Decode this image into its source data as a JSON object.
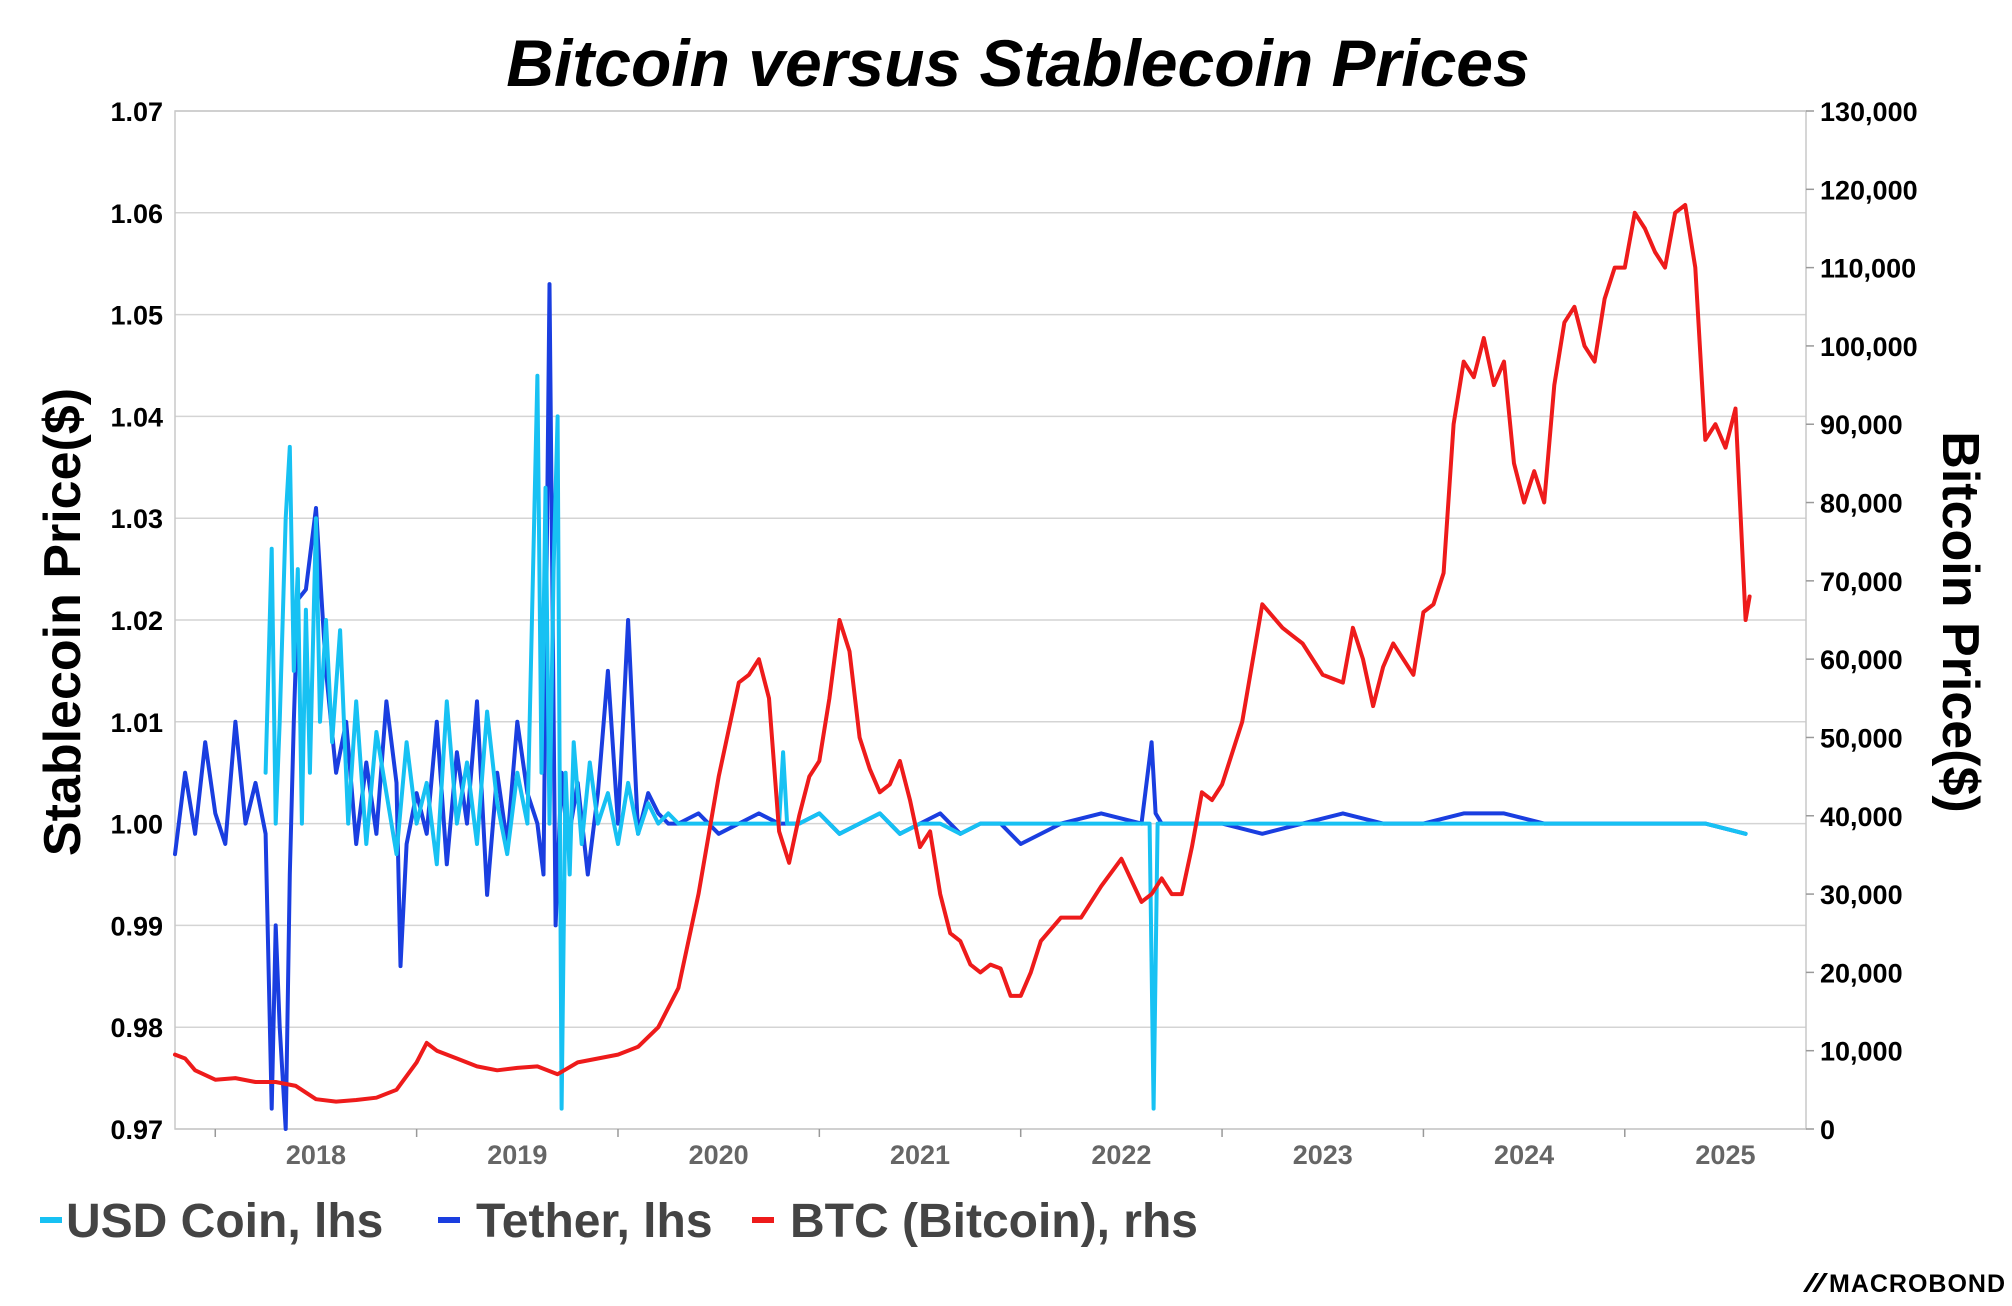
{
  "chart_data": {
    "type": "line",
    "title": "Bitcoin versus Stablecoin Prices",
    "ylabel_left": "Stablecoin Price($)",
    "ylabel_right": "Bitcoin Price($)",
    "ylim_left": [
      0.97,
      1.07
    ],
    "ylim_right": [
      0,
      130000
    ],
    "yticks_left": [
      "1.07",
      "1.06",
      "1.05",
      "1.04",
      "1.03",
      "1.02",
      "1.01",
      "1.00",
      "0.99",
      "0.98",
      "0.97"
    ],
    "yticks_right": [
      "130,000",
      "120,000",
      "110,000",
      "100,000",
      "90,000",
      "80,000",
      "70,000",
      "60,000",
      "50,000",
      "40,000",
      "30,000",
      "20,000",
      "10,000",
      "0"
    ],
    "xlim": [
      2017.8,
      2025.9
    ],
    "xticks": [
      "2018",
      "2019",
      "2020",
      "2021",
      "2022",
      "2023",
      "2024",
      "2025"
    ],
    "grid": true,
    "legend_position": "bottom-left",
    "series": [
      {
        "name": "USD Coin, lhs",
        "axis": "left",
        "color": "#17c1f3",
        "x": [
          2018.25,
          2018.28,
          2018.3,
          2018.32,
          2018.35,
          2018.37,
          2018.39,
          2018.41,
          2018.43,
          2018.45,
          2018.47,
          2018.5,
          2018.52,
          2018.55,
          2018.58,
          2018.62,
          2018.66,
          2018.7,
          2018.75,
          2018.8,
          2018.85,
          2018.9,
          2018.95,
          2019.0,
          2019.05,
          2019.1,
          2019.15,
          2019.2,
          2019.25,
          2019.3,
          2019.35,
          2019.4,
          2019.45,
          2019.5,
          2019.55,
          2019.6,
          2019.62,
          2019.64,
          2019.66,
          2019.68,
          2019.7,
          2019.72,
          2019.74,
          2019.76,
          2019.78,
          2019.82,
          2019.86,
          2019.9,
          2019.95,
          2020.0,
          2020.05,
          2020.1,
          2020.15,
          2020.2,
          2020.25,
          2020.3,
          2020.4,
          2020.5,
          2020.6,
          2020.7,
          2020.8,
          2020.82,
          2020.84,
          2020.9,
          2021.0,
          2021.1,
          2021.2,
          2021.3,
          2021.4,
          2021.5,
          2021.6,
          2021.7,
          2021.8,
          2021.9,
          2022.0,
          2022.2,
          2022.4,
          2022.6,
          2022.64,
          2022.66,
          2022.68,
          2022.7,
          2022.8,
          2023.0,
          2023.2,
          2023.4,
          2023.6,
          2023.8,
          2024.0,
          2024.2,
          2024.4,
          2024.6,
          2024.8,
          2025.0,
          2025.2,
          2025.4,
          2025.6
        ],
        "values": [
          1.005,
          1.027,
          1.0,
          1.01,
          1.03,
          1.037,
          1.015,
          1.025,
          1.0,
          1.021,
          1.005,
          1.03,
          1.01,
          1.02,
          1.008,
          1.019,
          1.0,
          1.012,
          0.998,
          1.009,
          1.003,
          0.997,
          1.008,
          1.0,
          1.004,
          0.996,
          1.012,
          1.0,
          1.006,
          0.998,
          1.011,
          1.002,
          0.997,
          1.005,
          1.0,
          1.044,
          1.005,
          1.033,
          1.0,
          1.025,
          1.04,
          0.972,
          1.005,
          0.995,
          1.008,
          0.998,
          1.006,
          1.0,
          1.003,
          0.998,
          1.004,
          0.999,
          1.002,
          1.0,
          1.001,
          1.0,
          1.0,
          1.0,
          1.0,
          1.0,
          1.0,
          1.007,
          1.0,
          1.0,
          1.001,
          0.999,
          1.0,
          1.001,
          0.999,
          1.0,
          1.0,
          0.999,
          1.0,
          1.0,
          1.0,
          1.0,
          1.0,
          1.0,
          1.0,
          0.972,
          1.0,
          1.0,
          1.0,
          1.0,
          1.0,
          1.0,
          1.0,
          1.0,
          1.0,
          1.0,
          1.0,
          1.0,
          1.0,
          1.0,
          1.0,
          1.0,
          0.999
        ]
      },
      {
        "name": "Tether, lhs",
        "axis": "left",
        "color": "#1a3ee0",
        "x": [
          2017.8,
          2017.85,
          2017.9,
          2017.95,
          2018.0,
          2018.05,
          2018.1,
          2018.15,
          2018.2,
          2018.25,
          2018.28,
          2018.3,
          2018.32,
          2018.35,
          2018.37,
          2018.39,
          2018.41,
          2018.45,
          2018.5,
          2018.55,
          2018.6,
          2018.65,
          2018.7,
          2018.75,
          2018.8,
          2018.85,
          2018.9,
          2018.92,
          2018.95,
          2019.0,
          2019.05,
          2019.1,
          2019.15,
          2019.2,
          2019.25,
          2019.3,
          2019.35,
          2019.4,
          2019.45,
          2019.5,
          2019.55,
          2019.6,
          2019.63,
          2019.66,
          2019.69,
          2019.72,
          2019.75,
          2019.8,
          2019.85,
          2019.9,
          2019.95,
          2020.0,
          2020.05,
          2020.1,
          2020.15,
          2020.2,
          2020.25,
          2020.3,
          2020.4,
          2020.5,
          2020.6,
          2020.7,
          2020.8,
          2020.9,
          2021.0,
          2021.1,
          2021.2,
          2021.3,
          2021.4,
          2021.5,
          2021.6,
          2021.7,
          2021.8,
          2021.9,
          2022.0,
          2022.2,
          2022.4,
          2022.6,
          2022.65,
          2022.67,
          2022.7,
          2022.8,
          2023.0,
          2023.2,
          2023.4,
          2023.6,
          2023.8,
          2024.0,
          2024.2,
          2024.4,
          2024.6,
          2024.8,
          2025.0,
          2025.2,
          2025.4,
          2025.6
        ],
        "values": [
          0.997,
          1.005,
          0.999,
          1.008,
          1.001,
          0.998,
          1.01,
          1.0,
          1.004,
          0.999,
          0.972,
          0.99,
          0.98,
          0.97,
          0.995,
          1.01,
          1.022,
          1.023,
          1.031,
          1.015,
          1.005,
          1.01,
          0.998,
          1.006,
          0.999,
          1.012,
          1.004,
          0.986,
          0.998,
          1.003,
          0.999,
          1.01,
          0.996,
          1.007,
          1.0,
          1.012,
          0.993,
          1.005,
          0.998,
          1.01,
          1.003,
          1.0,
          0.995,
          1.053,
          0.99,
          1.005,
          0.998,
          1.004,
          0.995,
          1.003,
          1.015,
          1.0,
          1.02,
          0.999,
          1.003,
          1.001,
          1.0,
          1.0,
          1.001,
          0.999,
          1.0,
          1.001,
          1.0,
          1.0,
          1.001,
          0.999,
          1.0,
          1.001,
          0.999,
          1.0,
          1.001,
          0.999,
          1.0,
          1.0,
          0.998,
          1.0,
          1.001,
          1.0,
          1.008,
          1.001,
          1.0,
          1.0,
          1.0,
          0.999,
          1.0,
          1.001,
          1.0,
          1.0,
          1.001,
          1.001,
          1.0,
          1.0,
          1.0,
          1.0,
          1.0,
          0.999
        ]
      },
      {
        "name": "BTC (Bitcoin), rhs",
        "axis": "right",
        "color": "#ee1b1b",
        "x": [
          2017.8,
          2017.85,
          2017.9,
          2018.0,
          2018.1,
          2018.2,
          2018.3,
          2018.4,
          2018.5,
          2018.6,
          2018.7,
          2018.8,
          2018.9,
          2019.0,
          2019.05,
          2019.1,
          2019.2,
          2019.3,
          2019.4,
          2019.5,
          2019.6,
          2019.7,
          2019.8,
          2019.9,
          2020.0,
          2020.1,
          2020.2,
          2020.3,
          2020.4,
          2020.5,
          2020.6,
          2020.65,
          2020.7,
          2020.75,
          2020.8,
          2020.85,
          2020.9,
          2020.95,
          2021.0,
          2021.05,
          2021.1,
          2021.15,
          2021.2,
          2021.25,
          2021.3,
          2021.35,
          2021.4,
          2021.45,
          2021.5,
          2021.55,
          2021.6,
          2021.65,
          2021.7,
          2021.75,
          2021.8,
          2021.85,
          2021.9,
          2021.95,
          2022.0,
          2022.05,
          2022.1,
          2022.15,
          2022.2,
          2022.3,
          2022.4,
          2022.5,
          2022.6,
          2022.65,
          2022.7,
          2022.75,
          2022.8,
          2022.85,
          2022.9,
          2022.95,
          2023.0,
          2023.1,
          2023.2,
          2023.3,
          2023.35,
          2023.4,
          2023.5,
          2023.6,
          2023.65,
          2023.7,
          2023.75,
          2023.8,
          2023.85,
          2023.9,
          2023.95,
          2024.0,
          2024.05,
          2024.1,
          2024.15,
          2024.2,
          2024.25,
          2024.3,
          2024.35,
          2024.4,
          2024.45,
          2024.5,
          2024.55,
          2024.6,
          2024.65,
          2024.7,
          2024.75,
          2024.8,
          2024.85,
          2024.9,
          2024.95,
          2025.0,
          2025.05,
          2025.1,
          2025.15,
          2025.2,
          2025.25,
          2025.3,
          2025.35,
          2025.4,
          2025.45,
          2025.5,
          2025.55,
          2025.6,
          2025.62
        ],
        "values": [
          9500,
          9000,
          7500,
          6300,
          6500,
          6000,
          6000,
          5500,
          3800,
          3500,
          3700,
          4000,
          5000,
          8500,
          11000,
          10000,
          9000,
          8000,
          7500,
          7800,
          8000,
          7000,
          8500,
          9000,
          9500,
          10500,
          13000,
          18000,
          30000,
          45000,
          57000,
          58000,
          60000,
          55000,
          38000,
          34000,
          40000,
          45000,
          47000,
          55000,
          65000,
          61000,
          50000,
          46000,
          43000,
          44000,
          47000,
          42000,
          36000,
          38000,
          30000,
          25000,
          24000,
          21000,
          20000,
          21000,
          20500,
          17000,
          17000,
          20000,
          24000,
          25500,
          27000,
          27000,
          31000,
          34500,
          29000,
          30000,
          32000,
          30000,
          30000,
          36000,
          43000,
          42000,
          44000,
          52000,
          67000,
          64000,
          63000,
          62000,
          58000,
          57000,
          64000,
          60000,
          54000,
          59000,
          62000,
          60000,
          58000,
          66000,
          67000,
          71000,
          90000,
          98000,
          96000,
          101000,
          95000,
          98000,
          85000,
          80000,
          84000,
          80000,
          95000,
          103000,
          105000,
          100000,
          98000,
          106000,
          110000,
          110000,
          117000,
          115000,
          112000,
          110000,
          117000,
          118000,
          110000,
          88000,
          90000,
          87000,
          92000,
          65000,
          68000
        ]
      }
    ]
  },
  "legend": {
    "items": [
      "USD Coin, lhs",
      "Tether, lhs",
      "BTC (Bitcoin), rhs"
    ]
  },
  "brand": "MACROBOND"
}
